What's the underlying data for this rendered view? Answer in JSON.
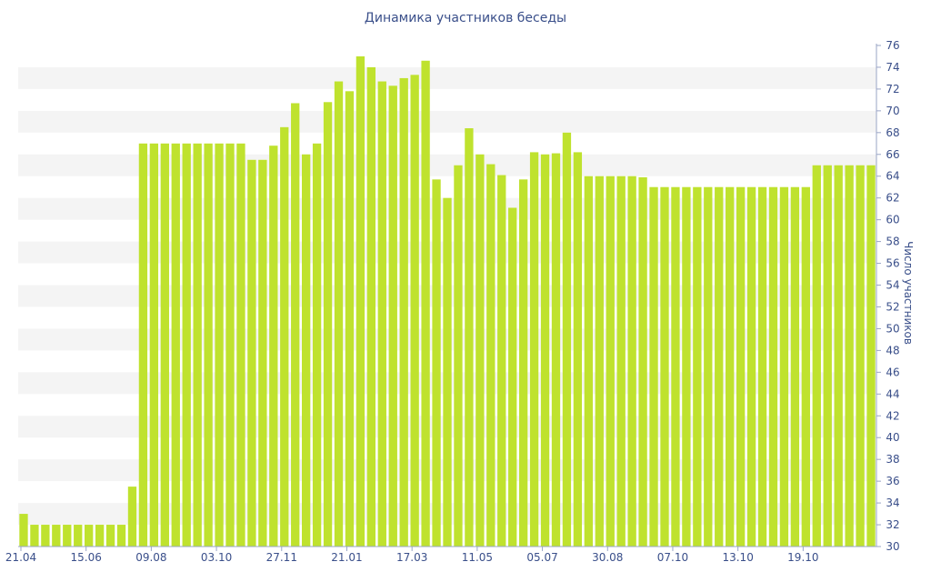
{
  "chart_data": {
    "type": "bar",
    "title": "Динамика участников беседы",
    "xlabel": "",
    "ylabel": "Число участников",
    "ylim": [
      30,
      76
    ],
    "y_ticks": [
      30,
      32,
      34,
      36,
      38,
      40,
      42,
      44,
      46,
      48,
      50,
      52,
      54,
      56,
      58,
      60,
      62,
      64,
      66,
      68,
      70,
      72,
      74,
      76
    ],
    "x_tick_labels": [
      {
        "index": 0,
        "label": "21.04"
      },
      {
        "index": 6,
        "label": "15.06"
      },
      {
        "index": 12,
        "label": "09.08"
      },
      {
        "index": 18,
        "label": "03.10"
      },
      {
        "index": 24,
        "label": "27.11"
      },
      {
        "index": 30,
        "label": "21.01"
      },
      {
        "index": 36,
        "label": "17.03"
      },
      {
        "index": 42,
        "label": "11.05"
      },
      {
        "index": 48,
        "label": "05.07"
      },
      {
        "index": 54,
        "label": "30.08"
      },
      {
        "index": 60,
        "label": "07.10"
      },
      {
        "index": 66,
        "label": "13.10"
      },
      {
        "index": 72,
        "label": "19.10"
      }
    ],
    "values": [
      33,
      32,
      32,
      32,
      32,
      32,
      32,
      32,
      32,
      32,
      35.5,
      67,
      67,
      67,
      67,
      67,
      67,
      67,
      67,
      67,
      67,
      65.5,
      65.5,
      66.8,
      68.5,
      70.7,
      66,
      67,
      70.8,
      72.7,
      71.8,
      75,
      74,
      72.7,
      72.3,
      73,
      73.3,
      74.6,
      63.7,
      62,
      65,
      68.4,
      66,
      65.1,
      64.1,
      61.1,
      63.7,
      66.2,
      66,
      66.1,
      68,
      66.2,
      64,
      64,
      64,
      64,
      64,
      63.9,
      63,
      63,
      63,
      63,
      63,
      63,
      63,
      63,
      63,
      63,
      63,
      63,
      63,
      63,
      63,
      65,
      65,
      65,
      65,
      65,
      65
    ],
    "grid": "horizontal bands",
    "colors": {
      "bar": "#bfe22e",
      "band": "#f4f4f4",
      "text": "#3a4f8a",
      "axis": "#9aa5c6"
    }
  }
}
